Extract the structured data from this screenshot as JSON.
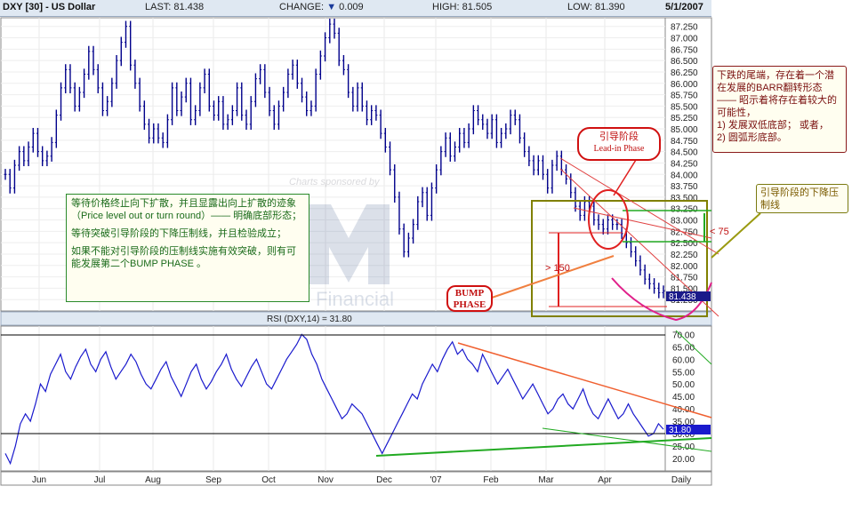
{
  "header": {
    "symbol": "DXY [30] - US Dollar",
    "last_label": "LAST:",
    "last_value": "81.438",
    "change_label": "CHANGE:",
    "change_value": "0.009",
    "high_label": "HIGH:",
    "high_value": "81.505",
    "low_label": "LOW:",
    "low_value": "81.390",
    "date": "5/1/2007"
  },
  "watermark": {
    "sponsor": "Charts sponsored by",
    "brand": "Financial"
  },
  "rsi_label": "RSI (DXY,14) = 31.80",
  "last_price_tag": "81.438",
  "last_rsi_tag": "31.80",
  "frequency": "Daily",
  "annotations": {
    "left_note": [
      "等待价格终止向下扩散，并且显露出向上扩散的迹象（Price level out or turn round）—— 明确底部形态；",
      "等待突破引导阶段的下降压制线，并且检验成立；",
      "如果不能对引导阶段的压制线实施有效突破，则有可能发展第二个BUMP PHASE 。"
    ],
    "right_note": [
      "下跌的尾端，存在着一个潜在发展的BARR翻转形态 —— 昭示着将存在着较大的可能性，",
      "1) 发展双低底部；   或者，",
      "2) 圆弧形底部。"
    ],
    "lead_in_cn": "引导阶段",
    "lead_in_en": "Lead-in Phase",
    "resistance_note": "引导阶段的下降压制线",
    "bump_phase": [
      "BUMP",
      "PHASE"
    ],
    "gt150": "> 150",
    "lt75": "< 75"
  },
  "colors": {
    "price_line": "#00008b",
    "rsi_line": "#1a1acd",
    "red": "#e02020",
    "green": "#22aa22",
    "olive": "#808000",
    "orange": "#f08040"
  },
  "chart_data": [
    {
      "type": "line",
      "title": "DXY [30] - US Dollar",
      "ylabel": "",
      "ylim": [
        81.0,
        87.4
      ],
      "y_ticks": [
        "87.250",
        "87.000",
        "86.750",
        "86.500",
        "86.250",
        "86.000",
        "85.750",
        "85.500",
        "85.250",
        "85.000",
        "84.750",
        "84.500",
        "84.250",
        "84.000",
        "83.750",
        "83.500",
        "83.250",
        "83.000",
        "82.750",
        "82.500",
        "82.250",
        "82.000",
        "81.750",
        "81.500",
        "81.250"
      ],
      "x_tick_labels": [
        "Jun",
        "Jul",
        "Aug",
        "Sep",
        "Oct",
        "Nov",
        "Dec",
        "'07",
        "Feb",
        "Mar",
        "Apr",
        "Daily"
      ],
      "series": [
        {
          "values": [
            84.0,
            83.7,
            84.2,
            84.5,
            84.3,
            84.6,
            84.9,
            84.5,
            84.3,
            84.4,
            84.7,
            85.3,
            85.9,
            86.3,
            85.9,
            85.5,
            85.8,
            86.2,
            86.7,
            86.3,
            85.9,
            85.4,
            85.6,
            86.0,
            86.5,
            86.9,
            87.25,
            86.4,
            86.0,
            85.5,
            85.1,
            84.8,
            85.0,
            84.8,
            84.7,
            85.2,
            85.9,
            85.4,
            85.7,
            86.0,
            85.2,
            85.4,
            85.9,
            86.2,
            85.5,
            85.3,
            85.6,
            85.1,
            85.2,
            85.4,
            85.9,
            85.3,
            85.1,
            85.6,
            86.1,
            86.3,
            85.8,
            85.4,
            85.1,
            85.5,
            85.8,
            86.2,
            86.4,
            86.0,
            85.7,
            85.4,
            85.5,
            86.2,
            86.6,
            87.0,
            87.3,
            87.1,
            86.5,
            86.3,
            85.8,
            85.5,
            85.9,
            85.5,
            85.2,
            85.4,
            85.3,
            84.9,
            84.6,
            84.1,
            83.5,
            82.8,
            82.3,
            82.6,
            82.9,
            83.4,
            83.6,
            83.1,
            83.7,
            84.1,
            84.5,
            84.8,
            84.4,
            84.6,
            84.9,
            84.7,
            85.0,
            85.4,
            85.2,
            85.1,
            84.9,
            85.2,
            84.7,
            84.9,
            85.0,
            85.3,
            85.2,
            84.8,
            84.5,
            84.3,
            84.1,
            84.3,
            84.0,
            83.7,
            84.2,
            84.4,
            84.1,
            83.9,
            83.6,
            83.3,
            83.1,
            83.4,
            83.3,
            83.0,
            82.9,
            82.8,
            83.0,
            82.9,
            82.9,
            82.7,
            82.5,
            82.3,
            82.1,
            81.9,
            81.7,
            81.6,
            81.5,
            81.4,
            81.44
          ]
        }
      ]
    },
    {
      "type": "line",
      "title": "RSI (DXY,14) = 31.80",
      "ylim": [
        15,
        73
      ],
      "y_ticks": [
        "70.00",
        "65.00",
        "60.00",
        "55.00",
        "50.00",
        "45.00",
        "40.00",
        "35.00",
        "30.00",
        "25.00",
        "20.00"
      ],
      "reference_lines": [
        70,
        30
      ],
      "series": [
        {
          "values": [
            22,
            18,
            25,
            34,
            38,
            35,
            42,
            50,
            47,
            54,
            58,
            62,
            55,
            52,
            57,
            61,
            64,
            58,
            55,
            60,
            63,
            57,
            52,
            55,
            58,
            62,
            59,
            54,
            50,
            48,
            52,
            56,
            59,
            53,
            49,
            45,
            50,
            55,
            58,
            52,
            48,
            51,
            55,
            58,
            62,
            56,
            52,
            49,
            53,
            57,
            60,
            55,
            50,
            48,
            52,
            56,
            60,
            63,
            66,
            70,
            68,
            62,
            58,
            52,
            48,
            44,
            40,
            36,
            38,
            42,
            40,
            38,
            34,
            30,
            26,
            22,
            26,
            30,
            34,
            38,
            42,
            46,
            44,
            50,
            54,
            58,
            55,
            60,
            64,
            67,
            62,
            64,
            60,
            58,
            55,
            62,
            58,
            54,
            50,
            53,
            56,
            52,
            48,
            44,
            47,
            50,
            46,
            42,
            38,
            40,
            44,
            46,
            42,
            40,
            44,
            48,
            42,
            38,
            36,
            40,
            44,
            40,
            36,
            38,
            42,
            38,
            35,
            32,
            29,
            30,
            34,
            31.8
          ]
        }
      ]
    }
  ]
}
